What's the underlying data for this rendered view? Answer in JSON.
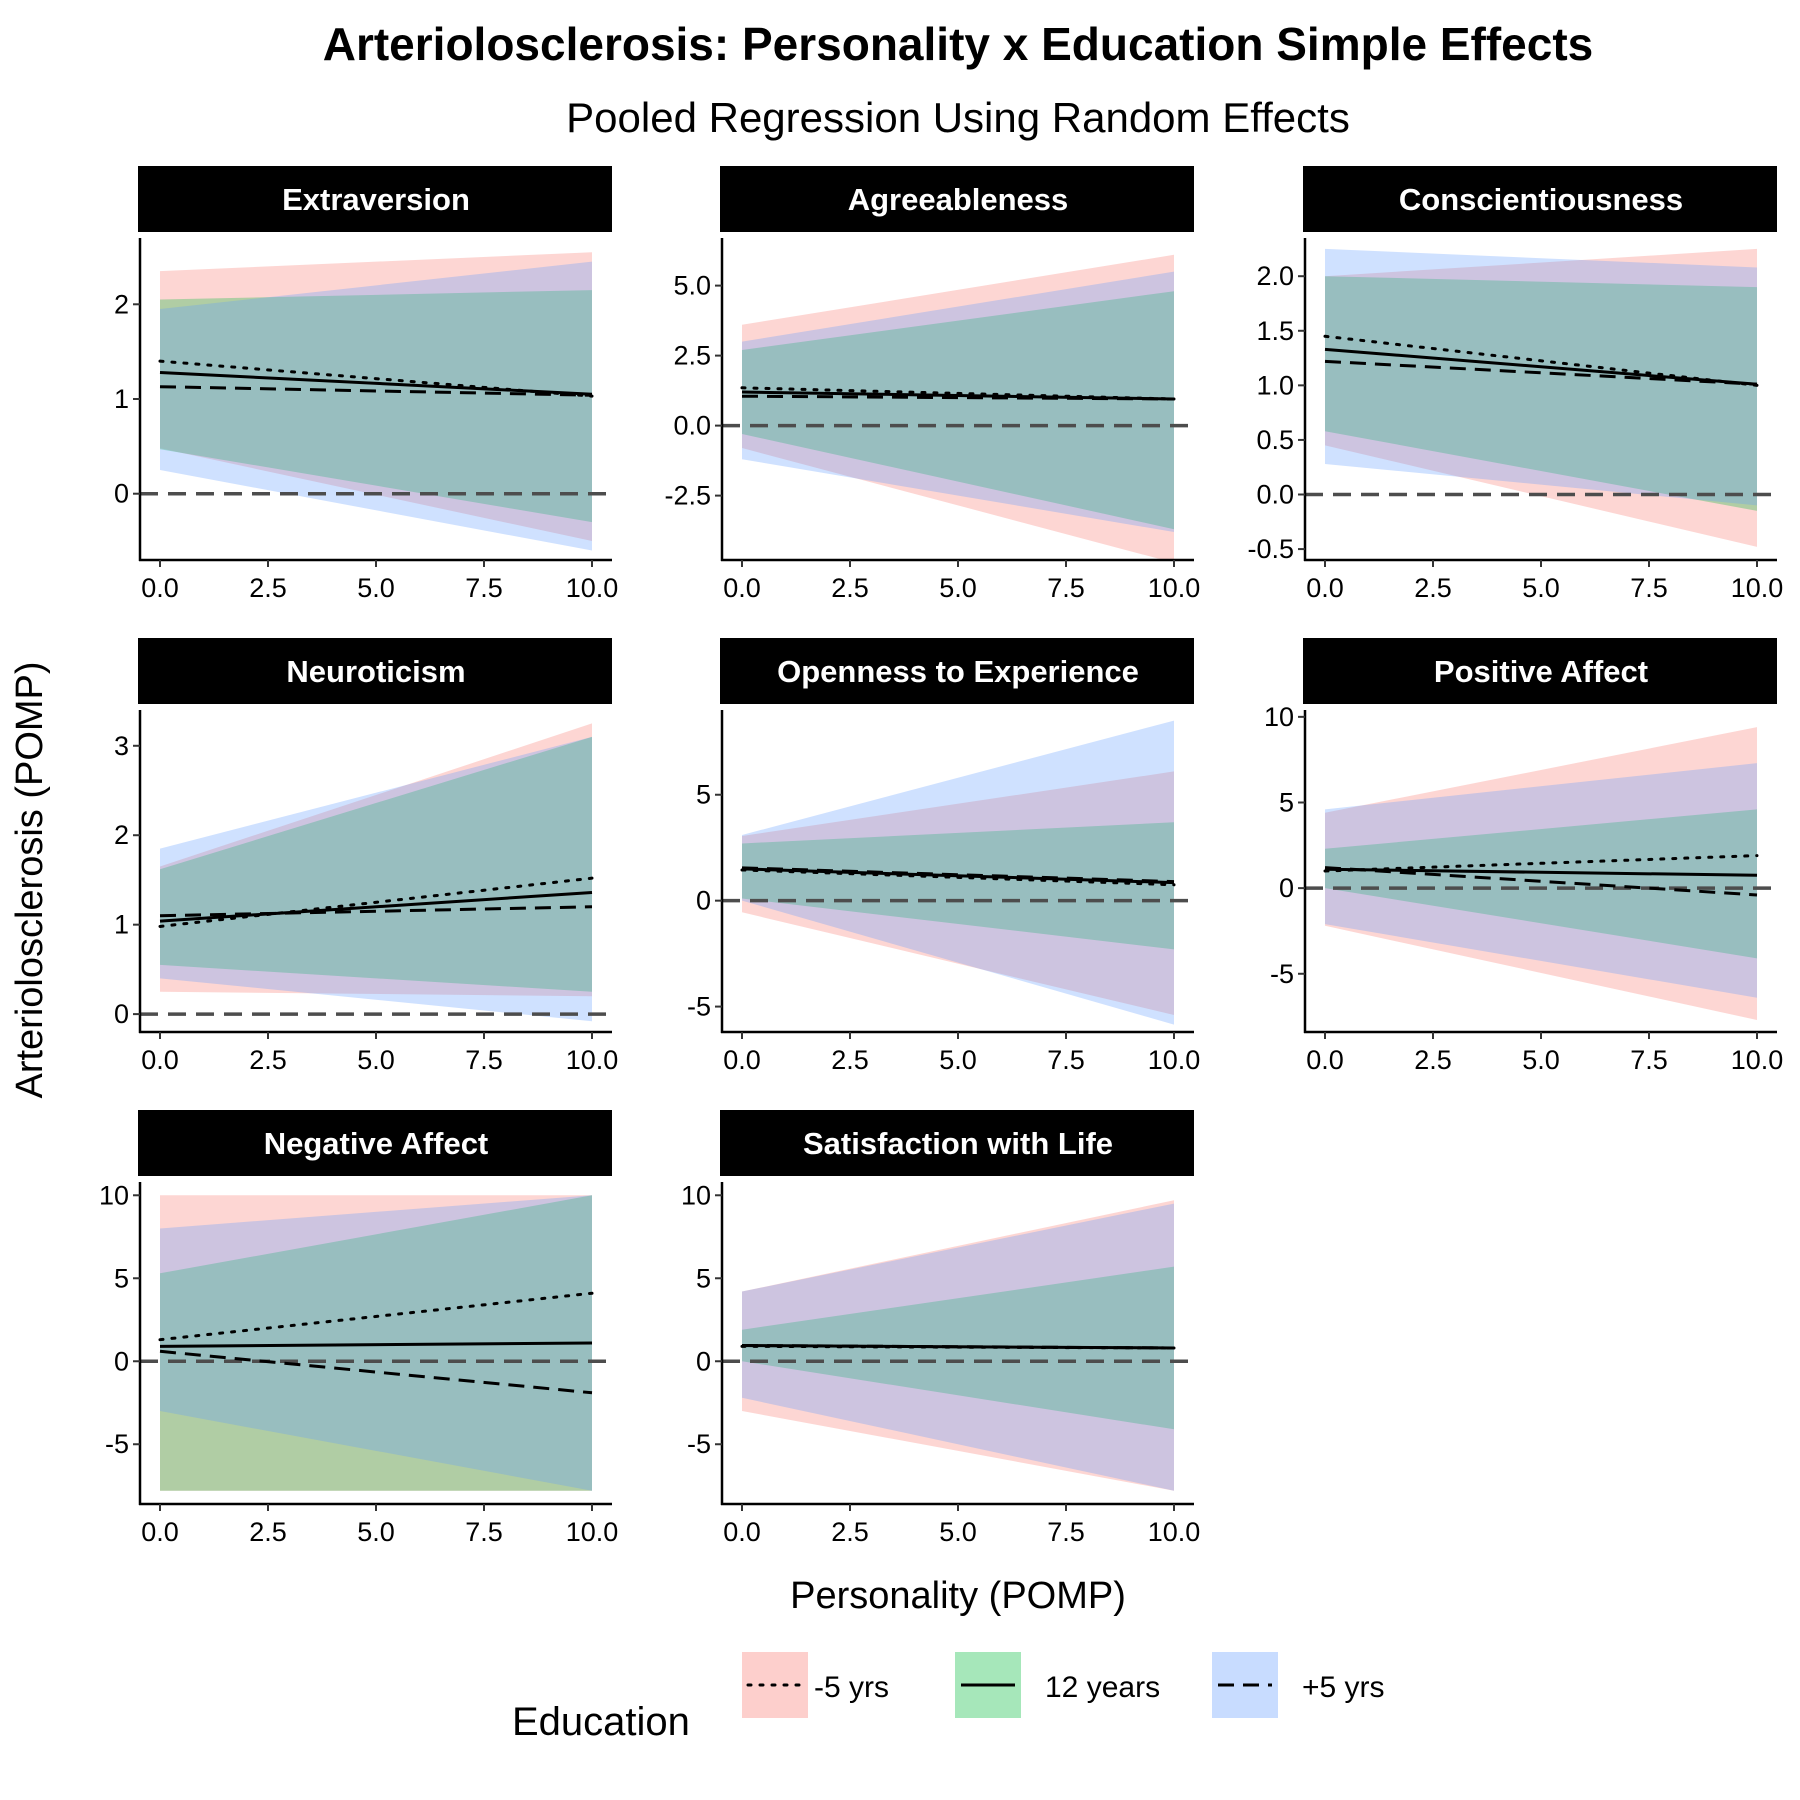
{
  "title": "Arteriolosclerosis: Personality x Education Simple Effects",
  "subtitle": "Pooled Regression Using Random Effects",
  "xlabel": "Personality (POMP)",
  "ylabel": "Arteriolosclerosis (POMP)",
  "legend": {
    "title": "Education",
    "position": "bottom",
    "items": [
      {
        "label": "-5 yrs",
        "fill": "#F8766D",
        "linetype": "dotted"
      },
      {
        "label": "12 years",
        "fill": "#00BA38",
        "linetype": "solid"
      },
      {
        "label": "+5 yrs",
        "fill": "#619CFF",
        "linetype": "dashed"
      }
    ]
  },
  "colors": {
    "minus5": "#F8766D",
    "mean": "#00BA38",
    "plus5": "#619CFF",
    "strip": "#000000",
    "zero_line": "#4D4D4D"
  },
  "chart_data": [
    {
      "type": "line",
      "title": "Extraversion",
      "xlim": [
        0,
        10
      ],
      "ylim": [
        -0.7,
        2.7
      ],
      "xticks": [
        0,
        2.5,
        5,
        7.5,
        10
      ],
      "xtick_labels": [
        "0.0",
        "2.5",
        "5.0",
        "7.5",
        "10.0"
      ],
      "yticks": [
        0,
        1,
        2
      ],
      "ytick_labels": [
        "0",
        "1",
        "2"
      ],
      "x": [
        0,
        10
      ],
      "series": [
        {
          "name": "-5 yrs",
          "values": [
            1.4,
            1.03
          ],
          "lower": [
            0.48,
            -0.5
          ],
          "upper": [
            2.35,
            2.55
          ]
        },
        {
          "name": "12 years",
          "values": [
            1.28,
            1.05
          ],
          "lower": [
            0.47,
            -0.3
          ],
          "upper": [
            2.05,
            2.15
          ]
        },
        {
          "name": "+5 yrs",
          "values": [
            1.13,
            1.04
          ],
          "lower": [
            0.25,
            -0.6
          ],
          "upper": [
            1.95,
            2.45
          ]
        }
      ]
    },
    {
      "type": "line",
      "title": "Agreeableness",
      "xlim": [
        0,
        10
      ],
      "ylim": [
        -4.8,
        6.7
      ],
      "xticks": [
        0,
        2.5,
        5,
        7.5,
        10
      ],
      "xtick_labels": [
        "0.0",
        "2.5",
        "5.0",
        "7.5",
        "10.0"
      ],
      "yticks": [
        -2.5,
        0,
        2.5,
        5
      ],
      "ytick_labels": [
        "-2.5",
        "0.0",
        "2.5",
        "5.0"
      ],
      "x": [
        0,
        10
      ],
      "series": [
        {
          "name": "-5 yrs",
          "values": [
            1.35,
            0.95
          ],
          "lower": [
            -0.8,
            -4.9
          ],
          "upper": [
            3.6,
            6.1
          ]
        },
        {
          "name": "12 years",
          "values": [
            1.2,
            0.95
          ],
          "lower": [
            -0.3,
            -3.7
          ],
          "upper": [
            2.7,
            4.8
          ]
        },
        {
          "name": "+5 yrs",
          "values": [
            1.05,
            0.95
          ],
          "lower": [
            -1.2,
            -3.8
          ],
          "upper": [
            3.0,
            5.5
          ]
        }
      ]
    },
    {
      "type": "line",
      "title": "Conscientiousness",
      "xlim": [
        0,
        10
      ],
      "ylim": [
        -0.6,
        2.35
      ],
      "xticks": [
        0,
        2.5,
        5,
        7.5,
        10
      ],
      "xtick_labels": [
        "0.0",
        "2.5",
        "5.0",
        "7.5",
        "10.0"
      ],
      "yticks": [
        -0.5,
        0,
        0.5,
        1,
        1.5,
        2
      ],
      "ytick_labels": [
        "-0.5",
        "0.0",
        "0.5",
        "1.0",
        "1.5",
        "2.0"
      ],
      "x": [
        0,
        10
      ],
      "series": [
        {
          "name": "-5 yrs",
          "values": [
            1.45,
            1.0
          ],
          "lower": [
            0.45,
            -0.48
          ],
          "upper": [
            2.0,
            2.25
          ]
        },
        {
          "name": "12 years",
          "values": [
            1.33,
            1.01
          ],
          "lower": [
            0.58,
            -0.15
          ],
          "upper": [
            2.0,
            1.9
          ]
        },
        {
          "name": "+5 yrs",
          "values": [
            1.22,
            1.01
          ],
          "lower": [
            0.28,
            -0.1
          ],
          "upper": [
            2.25,
            2.08
          ]
        }
      ]
    },
    {
      "type": "line",
      "title": "Neuroticism",
      "xlim": [
        0,
        10
      ],
      "ylim": [
        -0.2,
        3.4
      ],
      "xticks": [
        0,
        2.5,
        5,
        7.5,
        10
      ],
      "xtick_labels": [
        "0.0",
        "2.5",
        "5.0",
        "7.5",
        "10.0"
      ],
      "yticks": [
        0,
        1,
        2,
        3
      ],
      "ytick_labels": [
        "0",
        "1",
        "2",
        "3"
      ],
      "x": [
        0,
        10
      ],
      "series": [
        {
          "name": "-5 yrs",
          "values": [
            0.98,
            1.52
          ],
          "lower": [
            0.25,
            0.2
          ],
          "upper": [
            1.65,
            3.25
          ]
        },
        {
          "name": "12 years",
          "values": [
            1.04,
            1.36
          ],
          "lower": [
            0.55,
            0.25
          ],
          "upper": [
            1.62,
            3.1
          ]
        },
        {
          "name": "+5 yrs",
          "values": [
            1.1,
            1.2
          ],
          "lower": [
            0.4,
            -0.08
          ],
          "upper": [
            1.85,
            3.1
          ]
        }
      ]
    },
    {
      "type": "line",
      "title": "Openness to Experience",
      "xlim": [
        0,
        10
      ],
      "ylim": [
        -6.2,
        9.0
      ],
      "xticks": [
        0,
        2.5,
        5,
        7.5,
        10
      ],
      "xtick_labels": [
        "0.0",
        "2.5",
        "5.0",
        "7.5",
        "10.0"
      ],
      "yticks": [
        -5,
        0,
        5
      ],
      "ytick_labels": [
        "-5",
        "0",
        "5"
      ],
      "x": [
        0,
        10
      ],
      "series": [
        {
          "name": "-5 yrs",
          "values": [
            1.45,
            0.75
          ],
          "lower": [
            -0.55,
            -5.4
          ],
          "upper": [
            3.05,
            6.1
          ]
        },
        {
          "name": "12 years",
          "values": [
            1.5,
            0.85
          ],
          "lower": [
            0.1,
            -2.3
          ],
          "upper": [
            2.7,
            3.7
          ]
        },
        {
          "name": "+5 yrs",
          "values": [
            1.55,
            0.9
          ],
          "lower": [
            0.0,
            -5.85
          ],
          "upper": [
            3.1,
            8.5
          ]
        }
      ]
    },
    {
      "type": "line",
      "title": "Positive Affect",
      "xlim": [
        0,
        10
      ],
      "ylim": [
        -8.4,
        10.4
      ],
      "xticks": [
        0,
        2.5,
        5,
        7.5,
        10
      ],
      "xtick_labels": [
        "0.0",
        "2.5",
        "5.0",
        "7.5",
        "10.0"
      ],
      "yticks": [
        -5,
        0,
        5,
        10
      ],
      "ytick_labels": [
        "-5",
        "0",
        "5",
        "10"
      ],
      "x": [
        0,
        10
      ],
      "series": [
        {
          "name": "-5 yrs",
          "values": [
            1.0,
            1.9
          ],
          "lower": [
            -2.2,
            -7.7
          ],
          "upper": [
            4.4,
            9.4
          ]
        },
        {
          "name": "12 years",
          "values": [
            1.1,
            0.75
          ],
          "lower": [
            0.0,
            -4.1
          ],
          "upper": [
            2.3,
            4.6
          ]
        },
        {
          "name": "+5 yrs",
          "values": [
            1.2,
            -0.4
          ],
          "lower": [
            -2.1,
            -6.4
          ],
          "upper": [
            4.6,
            7.3
          ]
        }
      ]
    },
    {
      "type": "line",
      "title": "Negative Affect",
      "xlim": [
        0,
        10
      ],
      "ylim": [
        -8.6,
        10.8
      ],
      "xticks": [
        0,
        2.5,
        5,
        7.5,
        10
      ],
      "xtick_labels": [
        "0.0",
        "2.5",
        "5.0",
        "7.5",
        "10.0"
      ],
      "yticks": [
        -5,
        0,
        5,
        10
      ],
      "ytick_labels": [
        "-5",
        "0",
        "5",
        "10"
      ],
      "x": [
        0,
        10
      ],
      "series": [
        {
          "name": "-5 yrs",
          "values": [
            1.3,
            4.1
          ],
          "lower": [
            -7.8,
            -7.8
          ],
          "upper": [
            10.0,
            10.0
          ]
        },
        {
          "name": "12 years",
          "values": [
            0.9,
            1.1
          ],
          "lower": [
            -7.8,
            -7.8
          ],
          "upper": [
            5.3,
            10.0
          ]
        },
        {
          "name": "+5 yrs",
          "values": [
            0.6,
            -1.9
          ],
          "lower": [
            -3.0,
            -7.8
          ],
          "upper": [
            8.0,
            10.0
          ]
        }
      ]
    },
    {
      "type": "line",
      "title": "Satisfaction with Life",
      "xlim": [
        0,
        10
      ],
      "ylim": [
        -8.6,
        10.8
      ],
      "xticks": [
        0,
        2.5,
        5,
        7.5,
        10
      ],
      "xtick_labels": [
        "0.0",
        "2.5",
        "5.0",
        "7.5",
        "10.0"
      ],
      "yticks": [
        -5,
        0,
        5,
        10
      ],
      "ytick_labels": [
        "-5",
        "0",
        "5",
        "10"
      ],
      "x": [
        0,
        10
      ],
      "series": [
        {
          "name": "-5 yrs",
          "values": [
            0.9,
            0.8
          ],
          "lower": [
            -3.0,
            -7.8
          ],
          "upper": [
            4.2,
            9.7
          ]
        },
        {
          "name": "12 years",
          "values": [
            0.95,
            0.8
          ],
          "lower": [
            0.0,
            -4.1
          ],
          "upper": [
            1.9,
            5.7
          ]
        },
        {
          "name": "+5 yrs",
          "values": [
            0.95,
            0.8
          ],
          "lower": [
            -2.2,
            -7.8
          ],
          "upper": [
            4.2,
            9.5
          ]
        }
      ]
    }
  ]
}
